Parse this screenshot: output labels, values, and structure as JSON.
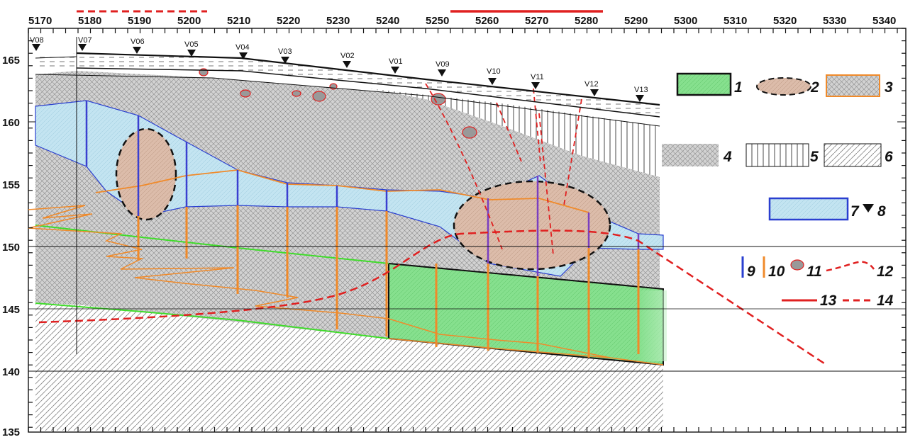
{
  "x_axis": {
    "ticks": [
      "5170",
      "5180",
      "5190",
      "5200",
      "5210",
      "5220",
      "5230",
      "5240",
      "5250",
      "5260",
      "5270",
      "5280",
      "5290",
      "5300",
      "5310",
      "5320",
      "5330",
      "5340"
    ]
  },
  "y_axis": {
    "ticks": [
      "165",
      "160",
      "155",
      "150",
      "145",
      "140",
      "135"
    ]
  },
  "wells": [
    "V08",
    "V07",
    "V06",
    "V05",
    "V04",
    "V03",
    "V02",
    "V01",
    "V09",
    "V10",
    "V11",
    "V12",
    "V13"
  ],
  "legend": {
    "n1": "1",
    "n2": "2",
    "n3": "3",
    "n4": "4",
    "n5": "5",
    "n6": "6",
    "n7": "7",
    "n8": "8",
    "n9": "9",
    "n10": "10",
    "n11": "11",
    "n12": "12",
    "n13": "13",
    "n14": "14"
  },
  "colors": {
    "green_zone": "#7fd98a",
    "ellipse_fill": "#d9b8a6",
    "blue_zone": "#bfe3f0",
    "orange": "#f08a2a",
    "red": "#e02020",
    "blue": "#2a3fd0",
    "gray_hatch": "#9a9a9a",
    "lime_line": "#3fdc2a"
  }
}
